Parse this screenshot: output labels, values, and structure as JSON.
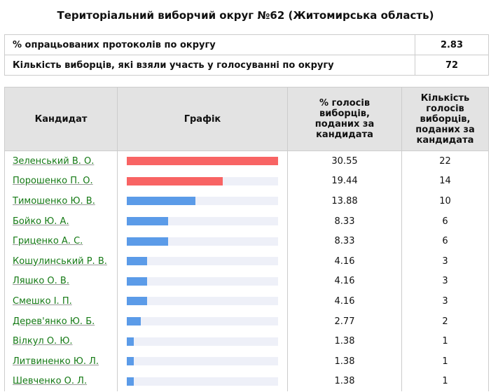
{
  "title": "Територіальний виборчий округ №62 (Житомирська область)",
  "summary": [
    {
      "label": "% опрацьованих протоколів по округу",
      "value": "2.83"
    },
    {
      "label": "Кількість виборців, які взяли участь у голосуванні по округу",
      "value": "72"
    }
  ],
  "table": {
    "headers": {
      "candidate": "Кандидат",
      "chart": "Графік",
      "percent": "% голосів виборців, поданих за кандидата",
      "votes": "Кількість голосів виборців, поданих за кандидата"
    },
    "rows": [
      {
        "name": "Зеленський В. О.",
        "percent": "30.55",
        "votes": "22",
        "color": "#f86464"
      },
      {
        "name": "Порошенко П. О.",
        "percent": "19.44",
        "votes": "14",
        "color": "#f86464"
      },
      {
        "name": "Тимошенко Ю. В.",
        "percent": "13.88",
        "votes": "10",
        "color": "#5b9be8"
      },
      {
        "name": "Бойко Ю. А.",
        "percent": "8.33",
        "votes": "6",
        "color": "#5b9be8"
      },
      {
        "name": "Гриценко А. С.",
        "percent": "8.33",
        "votes": "6",
        "color": "#5b9be8"
      },
      {
        "name": "Кошулинський Р. В.",
        "percent": "4.16",
        "votes": "3",
        "color": "#5b9be8"
      },
      {
        "name": "Ляшко О. В.",
        "percent": "4.16",
        "votes": "3",
        "color": "#5b9be8"
      },
      {
        "name": "Смешко І. П.",
        "percent": "4.16",
        "votes": "3",
        "color": "#5b9be8"
      },
      {
        "name": "Дерев'янко Ю. Б.",
        "percent": "2.77",
        "votes": "2",
        "color": "#5b9be8"
      },
      {
        "name": "Вілкул О. Ю.",
        "percent": "1.38",
        "votes": "1",
        "color": "#5b9be8"
      },
      {
        "name": "Литвиненко Ю. Л.",
        "percent": "1.38",
        "votes": "1",
        "color": "#5b9be8"
      },
      {
        "name": "Шевченко О. Л.",
        "percent": "1.38",
        "votes": "1",
        "color": "#5b9be8"
      }
    ]
  }
}
